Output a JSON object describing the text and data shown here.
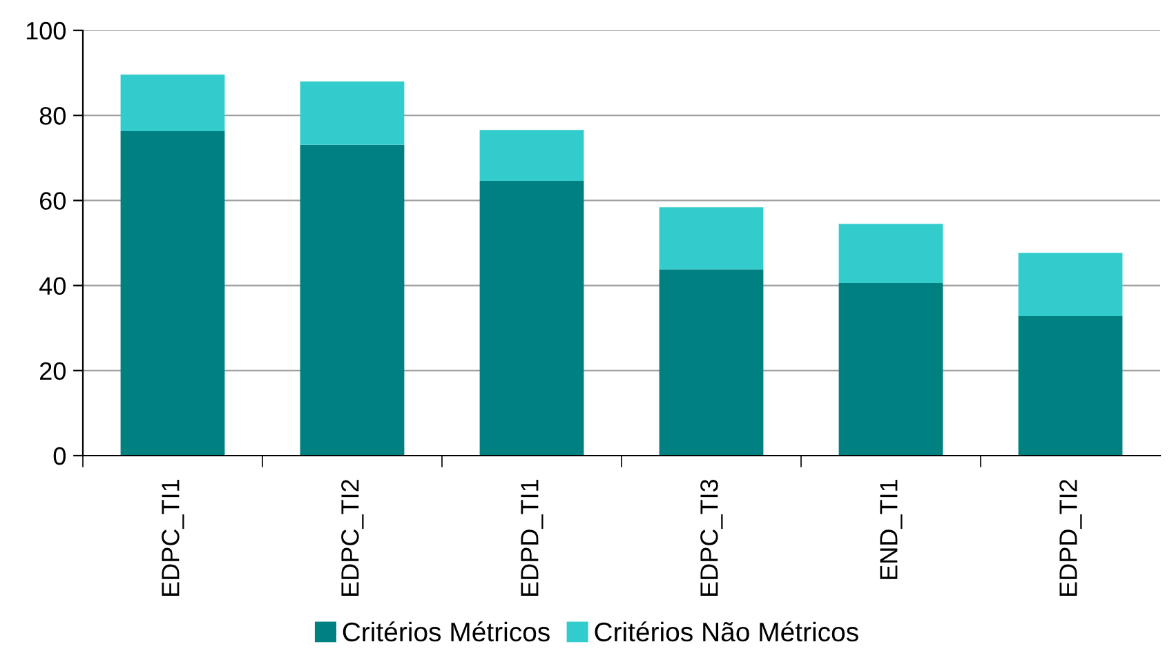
{
  "chart_data": {
    "type": "bar",
    "stacked": true,
    "categories": [
      "EDPC_TI1",
      "EDPC_TI2",
      "EDPD_TI1",
      "EDPC_TI3",
      "END_TI1",
      "EDPD_TI2"
    ],
    "series": [
      {
        "name": "Critérios Métricos",
        "color": "#008080",
        "values": [
          76.3,
          73.1,
          64.6,
          43.8,
          40.6,
          32.8
        ]
      },
      {
        "name": "Critérios Não Métricos",
        "color": "#33cccc",
        "values": [
          13.3,
          14.9,
          12.0,
          14.6,
          13.9,
          14.9
        ]
      }
    ],
    "ylim": [
      0,
      100
    ],
    "yticks": [
      0,
      20,
      40,
      60,
      80,
      100
    ],
    "grid": "y",
    "legend": "bottom"
  }
}
